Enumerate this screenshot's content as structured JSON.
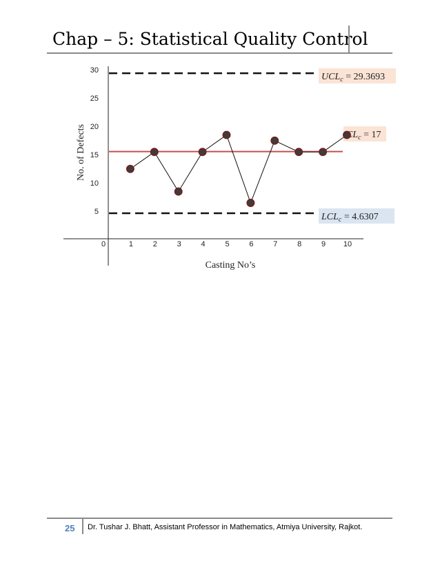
{
  "header": {
    "title": "Chap – 5: Statistical Quality Control"
  },
  "chart_data": {
    "type": "line",
    "title": "",
    "xlabel": "Casting No’s",
    "ylabel": "No. of Defects",
    "x": [
      1,
      2,
      3,
      4,
      5,
      6,
      7,
      8,
      9,
      10
    ],
    "x_tick_labels": [
      "0",
      "1",
      "2",
      "3",
      "4",
      "5",
      "6",
      "7",
      "8",
      "9",
      "10"
    ],
    "y_tick_labels": [
      "5",
      "10",
      "15",
      "20",
      "25",
      "30"
    ],
    "ylim": [
      0,
      30
    ],
    "xlim": [
      0,
      10
    ],
    "series": [
      {
        "values": [
          16,
          19,
          12,
          19,
          22,
          10,
          21,
          19,
          19,
          22
        ]
      }
    ],
    "control_lines": {
      "ucl": {
        "value": 29.3693,
        "label_var": "UCL",
        "label_sub": "c",
        "label_value": "29.3693",
        "fill": "#fbe4d5",
        "style": "dashed"
      },
      "cl": {
        "value": 17,
        "label_var": "CL",
        "label_sub": "c",
        "label_value": "17",
        "fill": "#fbe4d5",
        "style": "solid",
        "color": "#c0504d"
      },
      "lcl": {
        "value": 4.6307,
        "label_var": "LCL",
        "label_sub": "c",
        "label_value": "4.6307",
        "fill": "#dbe5f1",
        "style": "dashed"
      }
    },
    "grid": false,
    "legend": "none",
    "marker_color": "#3d3d3d"
  },
  "footer": {
    "page_number": "25",
    "text": "Dr. Tushar J. Bhatt, Assistant Professor in Mathematics, Atmiya University, Rajkot."
  }
}
